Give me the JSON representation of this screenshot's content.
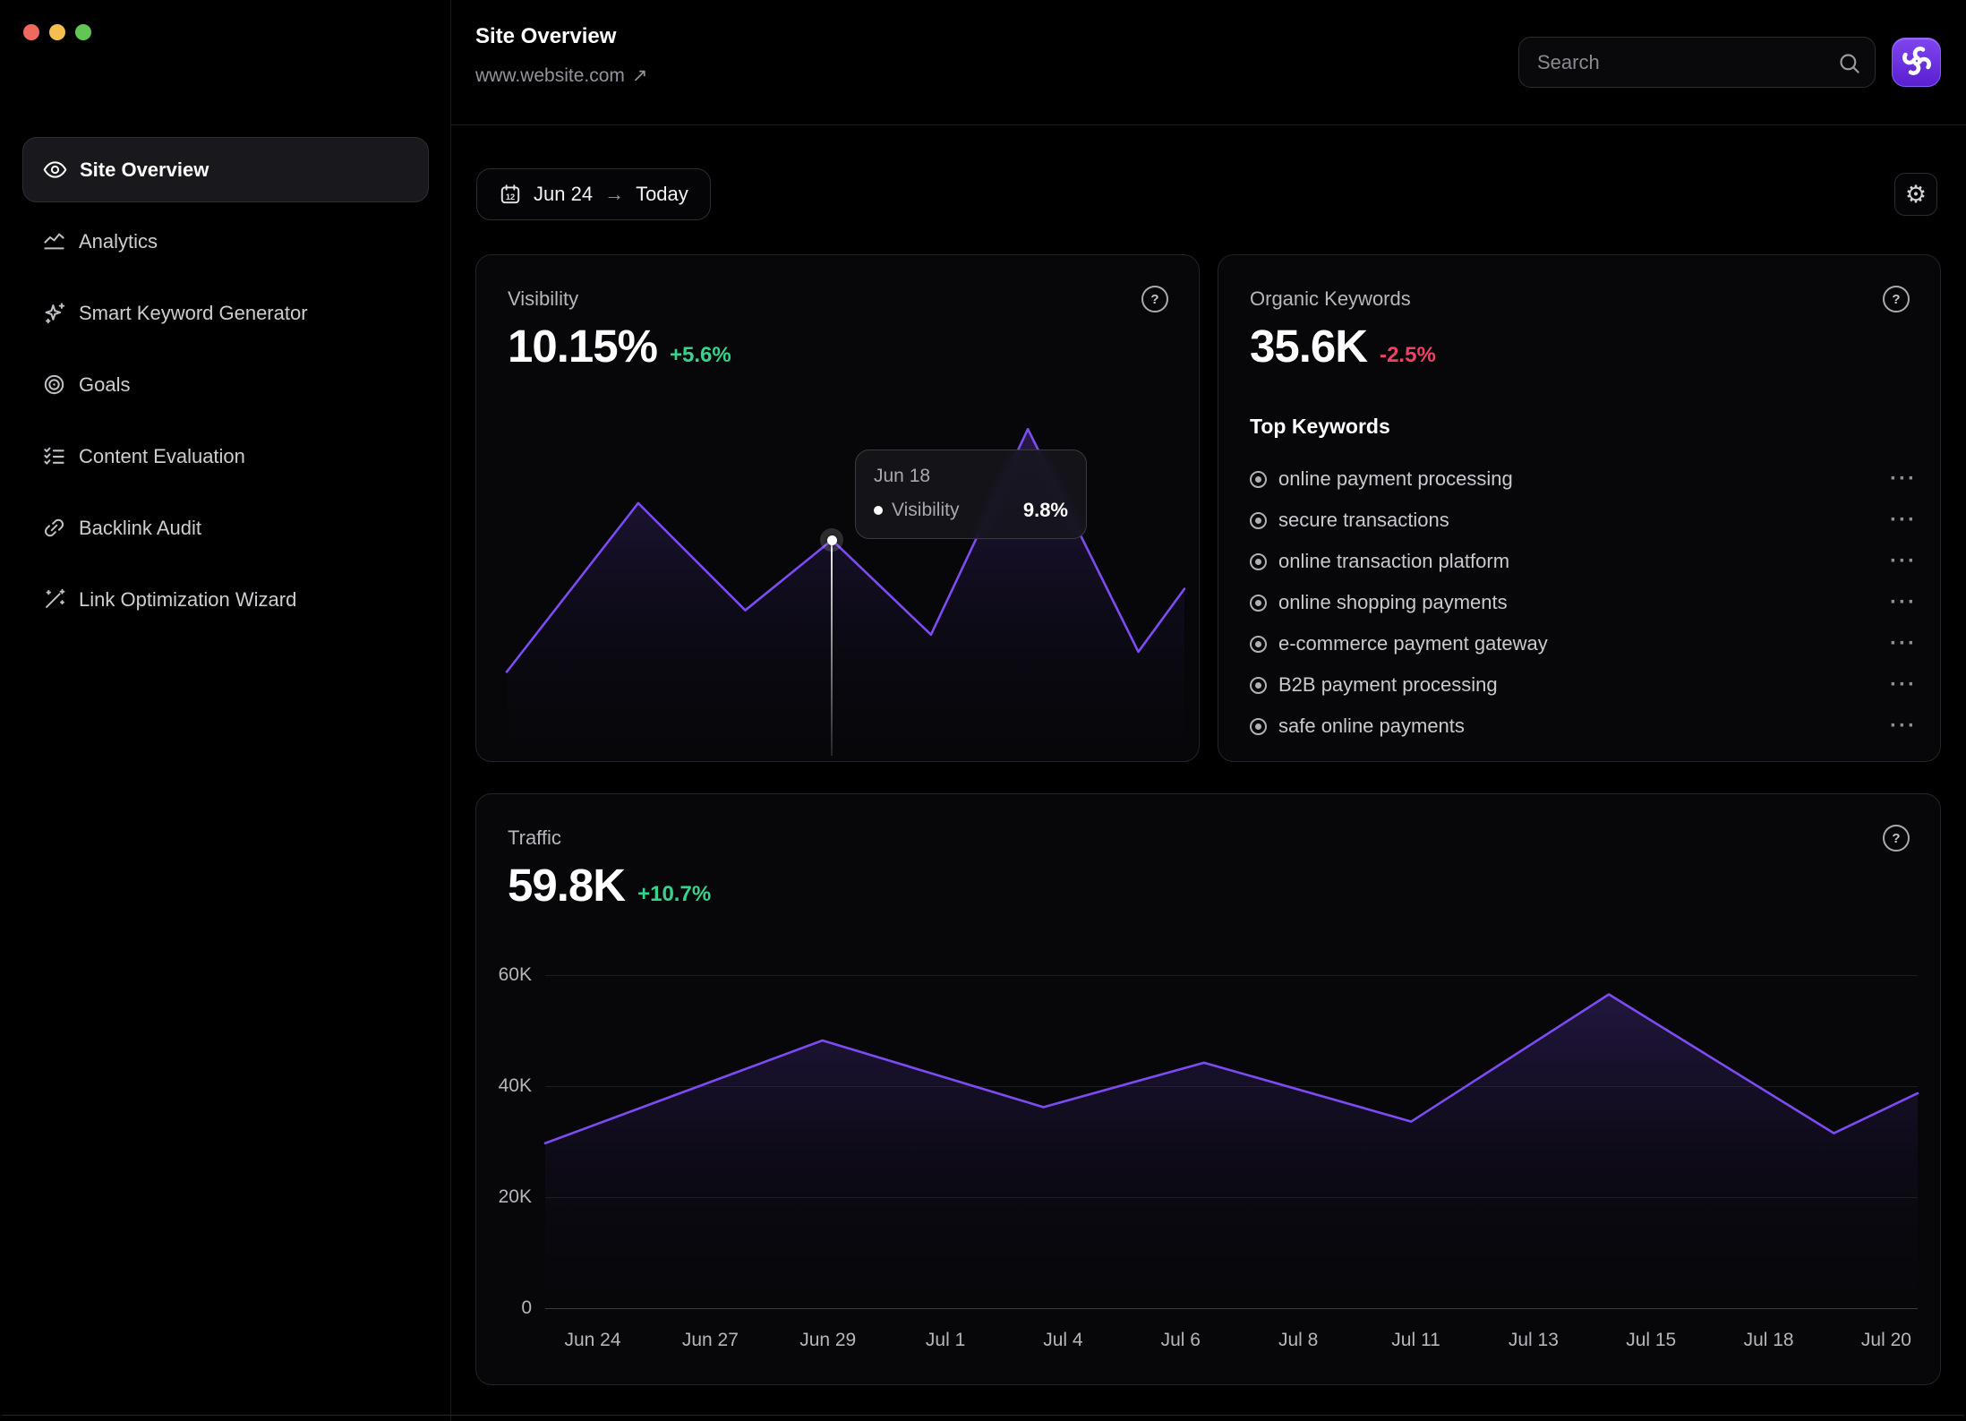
{
  "window": {
    "controls": [
      {
        "name": "close",
        "color": "#ee6a5f"
      },
      {
        "name": "minimize",
        "color": "#f5bf4f"
      },
      {
        "name": "zoom",
        "color": "#62c554"
      }
    ]
  },
  "sidebar": {
    "items": [
      {
        "label": "Site Overview",
        "icon": "eye",
        "active": true
      },
      {
        "label": "Analytics",
        "icon": "line-chart",
        "active": false
      },
      {
        "label": "Smart Keyword Generator",
        "icon": "sparkles",
        "active": false
      },
      {
        "label": "Goals",
        "icon": "target",
        "active": false
      },
      {
        "label": "Content Evaluation",
        "icon": "list-checks",
        "active": false
      },
      {
        "label": "Backlink Audit",
        "icon": "link",
        "active": false
      },
      {
        "label": "Link Optimization Wizard",
        "icon": "wand-sparkles",
        "active": false
      }
    ]
  },
  "header": {
    "title": "Site Overview",
    "url": "www.website.com",
    "external_arrow": "↗",
    "search": {
      "placeholder": "Search",
      "icon": "magnifier"
    },
    "app_button_icon": "pinwheel-logo"
  },
  "toolbar": {
    "date_range": {
      "icon": "calendar",
      "calendar_day": "12",
      "start": "Jun 24",
      "arrow": "→",
      "end": "Today"
    },
    "settings_icon": "gear",
    "settings_glyph": "⚙"
  },
  "cards": {
    "visibility": {
      "title": "Visibility",
      "value": "10.15%",
      "delta": "+5.6%",
      "delta_color": "#35d38c",
      "help_icon": "?",
      "tooltip": {
        "date": "Jun 18",
        "series": "Visibility",
        "value": "9.8%"
      }
    },
    "organic_keywords": {
      "title": "Organic Keywords",
      "value": "35.6K",
      "delta": "-2.5%",
      "delta_color": "#f23f66",
      "help_icon": "?",
      "list_title": "Top Keywords",
      "menu_glyph": "···",
      "keywords": [
        "online payment processing",
        "secure transactions",
        "online transaction platform",
        "online shopping payments",
        "e-commerce payment gateway",
        "B2B payment processing",
        "safe online payments"
      ]
    },
    "traffic": {
      "title": "Traffic",
      "value": "59.8K",
      "delta": "+10.7%",
      "delta_color": "#35d38c",
      "help_icon": "?"
    }
  },
  "chart_data": [
    {
      "type": "area",
      "title": "Visibility",
      "xlabel": "",
      "ylabel": "",
      "axes": "hidden",
      "line_color": "#7c4cf2",
      "points_pct": [
        [
          0,
          74.7
        ],
        [
          19.4,
          24.3
        ],
        [
          35.2,
          56.3
        ],
        [
          48,
          35.3
        ],
        [
          62.6,
          63.6
        ],
        [
          76.9,
          2.2
        ],
        [
          93.2,
          68.7
        ],
        [
          100,
          49.9
        ]
      ],
      "hover": {
        "x_pct": 48,
        "y_pct": 35.3,
        "date": "Jun 18",
        "series": "Visibility",
        "value": "9.8%"
      },
      "note": "unlabeled y-axis; hovered point Jun 18 = 9.8% visibility"
    },
    {
      "type": "area",
      "title": "Traffic",
      "xlabel": "",
      "ylabel": "",
      "grid": true,
      "legend": "none",
      "line_color": "#7c4cf2",
      "x": [
        "Jun 24",
        "Jun 27",
        "Jun 29",
        "Jul 1",
        "Jul 4",
        "Jul 6",
        "Jul 8",
        "Jul 11",
        "Jul 13",
        "Jul 15",
        "Jul 18",
        "Jul 20"
      ],
      "values_at_ticks_k": [
        30,
        41,
        48,
        40.5,
        37,
        43,
        40,
        34,
        47.5,
        52,
        37.5,
        38
      ],
      "y_ticks": [
        {
          "label": "60K",
          "v": 60
        },
        {
          "label": "40K",
          "v": 40
        },
        {
          "label": "20K",
          "v": 20
        },
        {
          "label": "0",
          "v": 0
        }
      ],
      "ylim_k": [
        0,
        60
      ],
      "y_max_k": 64,
      "line_vertices": [
        {
          "x_pct": 0,
          "y_k": 29.7
        },
        {
          "x_pct": 20.2,
          "y_k": 48.2
        },
        {
          "x_pct": 36.3,
          "y_k": 36.2
        },
        {
          "x_pct": 48.0,
          "y_k": 44.2
        },
        {
          "x_pct": 63.1,
          "y_k": 33.6
        },
        {
          "x_pct": 77.5,
          "y_k": 56.5
        },
        {
          "x_pct": 93.9,
          "y_k": 31.5
        },
        {
          "x_pct": 100,
          "y_k": 38.7
        }
      ]
    }
  ],
  "colors": {
    "background": "#000000",
    "card_bg": "#07070a",
    "card_border": "#232329",
    "accent_purple": "#7c4cf2",
    "green": "#35d38c",
    "red_pink": "#f23f66",
    "text_primary": "#ffffff",
    "text_secondary": "#b6b6bb",
    "text_muted": "#8e8e94"
  }
}
